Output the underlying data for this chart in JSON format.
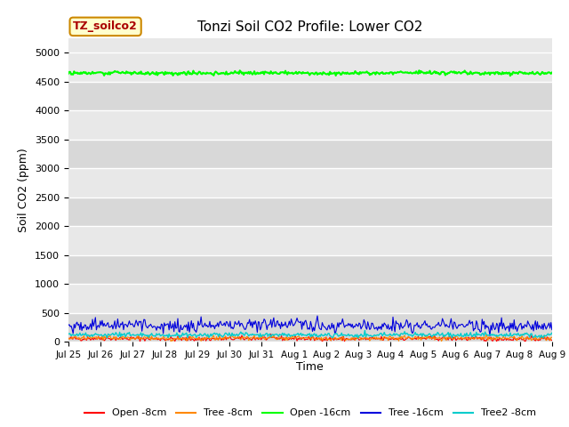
{
  "title": "Tonzi Soil CO2 Profile: Lower CO2",
  "xlabel": "Time",
  "ylabel": "Soil CO2 (ppm)",
  "ylim": [
    0,
    5250
  ],
  "yticks": [
    0,
    500,
    1000,
    1500,
    2000,
    2500,
    3000,
    3500,
    4000,
    4500,
    5000
  ],
  "bg_color": "#e8e8e8",
  "fig_color": "#ffffff",
  "legend_box_label": "TZ_soilco2",
  "legend_box_facecolor": "#ffffcc",
  "legend_box_edgecolor": "#cc8800",
  "series": {
    "open_8cm": {
      "label": "Open -8cm",
      "color": "#ff0000",
      "mean": 50,
      "noise": 20
    },
    "tree_8cm": {
      "label": "Tree -8cm",
      "color": "#ff8800",
      "mean": 60,
      "noise": 20
    },
    "open_16cm": {
      "label": "Open -16cm",
      "color": "#00ff00",
      "mean": 4650,
      "noise": 15
    },
    "tree_16cm": {
      "label": "Tree -16cm",
      "color": "#0000dd",
      "mean": 280,
      "noise": 55
    },
    "tree2_8cm": {
      "label": "Tree2 -8cm",
      "color": "#00cccc",
      "mean": 115,
      "noise": 20
    }
  },
  "n_points": 500,
  "x_start": 0,
  "x_end": 15,
  "xtick_positions": [
    0,
    1,
    2,
    3,
    4,
    5,
    6,
    7,
    8,
    9,
    10,
    11,
    12,
    13,
    14,
    15
  ],
  "xtick_labels": [
    "Jul 25",
    "Jul 26",
    "Jul 27",
    "Jul 28",
    "Jul 29",
    "Jul 30",
    "Jul 31",
    "Aug 1",
    "Aug 2",
    "Aug 3",
    "Aug 4",
    "Aug 5",
    "Aug 6",
    "Aug 7",
    "Aug 8",
    "Aug 9"
  ]
}
